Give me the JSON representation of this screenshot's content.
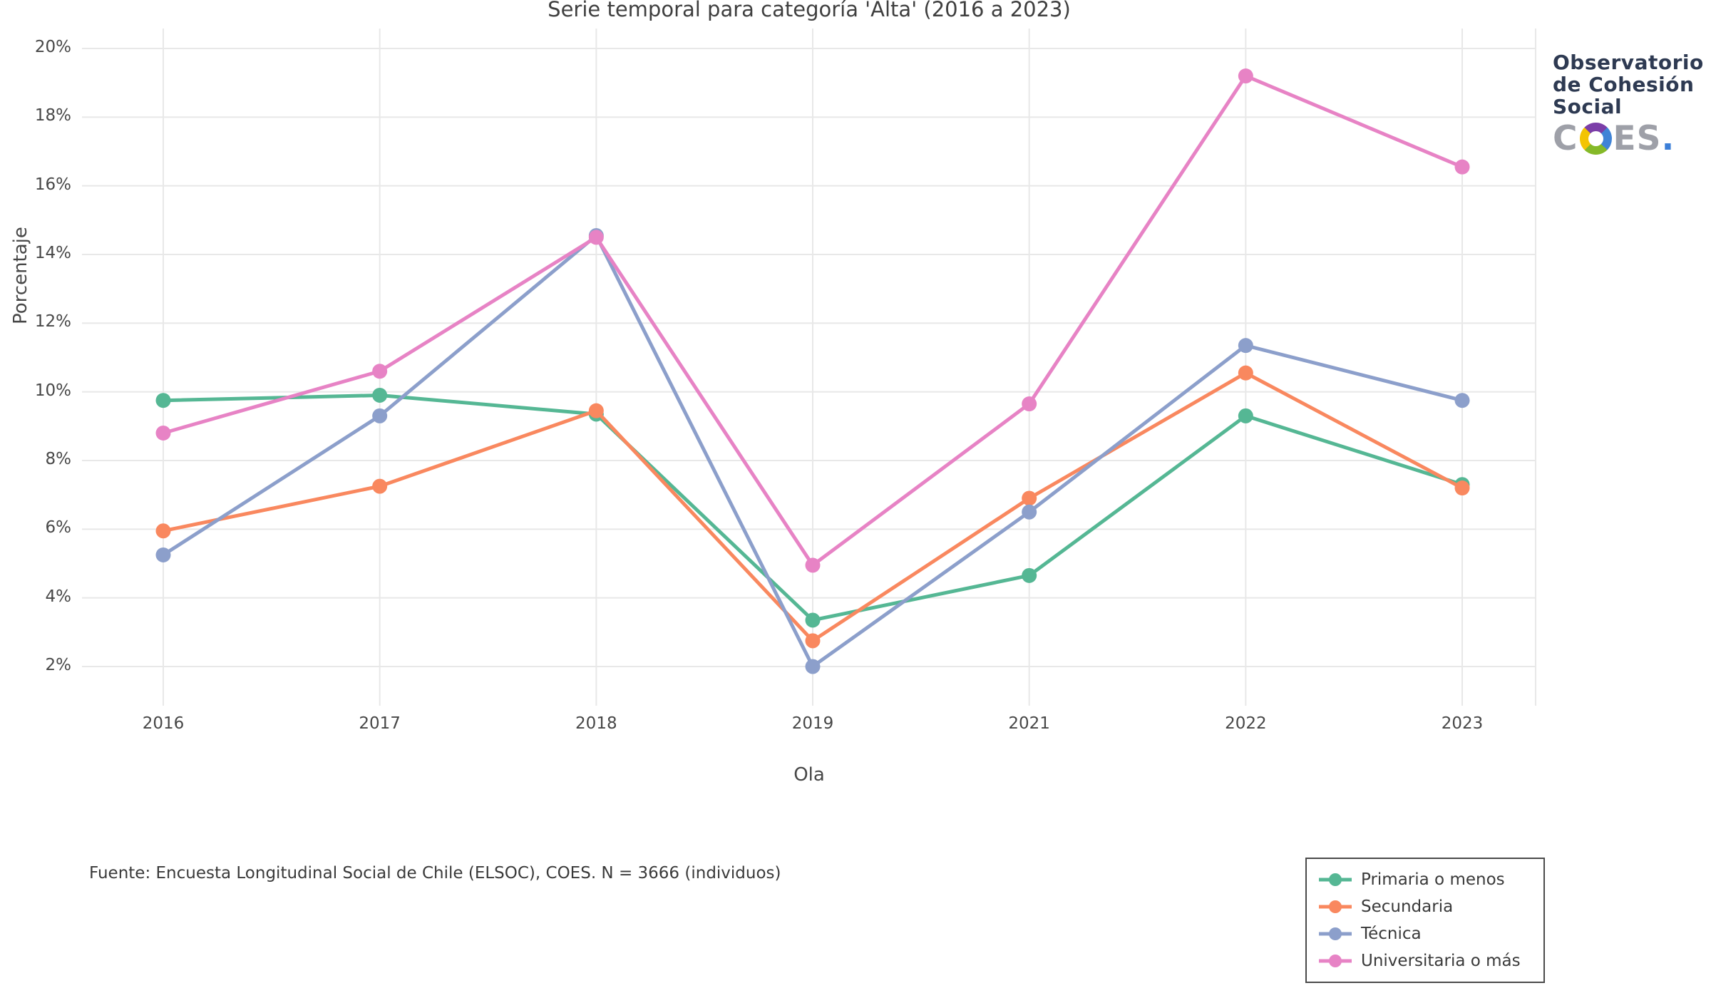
{
  "title": "Serie temporal para categoría 'Alta' (2016 a 2023)",
  "y_axis": {
    "label": "Porcentaje",
    "tick_labels": [
      "20%",
      "18%",
      "16%",
      "14%",
      "12%",
      "10%",
      "8%",
      "6%",
      "4%",
      "2%"
    ],
    "tick_values": [
      20,
      18,
      16,
      14,
      12,
      10,
      8,
      6,
      4,
      2
    ]
  },
  "x_axis": {
    "label": "Ola",
    "categories": [
      "2016",
      "2017",
      "2018",
      "2019",
      "2021",
      "2022",
      "2023"
    ]
  },
  "chart_data": {
    "type": "line",
    "title": "Serie temporal para categoría 'Alta' (2016 a 2023)",
    "xlabel": "Ola",
    "ylabel": "Porcentaje",
    "categories": [
      "2016",
      "2017",
      "2018",
      "2019",
      "2021",
      "2022",
      "2023"
    ],
    "series": [
      {
        "name": "Primaria o menos",
        "color": "#55b794",
        "values": [
          9.75,
          9.9,
          9.35,
          3.35,
          4.65,
          9.3,
          7.3
        ]
      },
      {
        "name": "Secundaria",
        "color": "#f9885f",
        "values": [
          5.95,
          7.25,
          9.45,
          2.75,
          6.9,
          10.55,
          7.2
        ]
      },
      {
        "name": "Técnica",
        "color": "#8c9fcb",
        "values": [
          5.25,
          9.3,
          14.55,
          2.0,
          6.5,
          11.35,
          9.75
        ]
      },
      {
        "name": "Universitaria o más",
        "color": "#e783c5",
        "values": [
          8.8,
          10.6,
          14.5,
          4.95,
          9.65,
          19.2,
          16.55
        ]
      }
    ],
    "ylim": [
      2,
      20
    ],
    "grid": true,
    "legend_position": "bottom-right",
    "grid_color": "#e8e8e8"
  },
  "footer": {
    "source": "Fuente: Encuesta Longitudinal Social de Chile (ELSOC), COES. N = 3666 (individuos)"
  },
  "logo": {
    "org_line1": "Observatorio",
    "org_line2": "de Cohesión",
    "org_line3": "Social",
    "brand_c": "C",
    "brand_es": "ES",
    "brand_dot": ".",
    "navy": "#2e3a52",
    "gray": "#9ea0a8",
    "blue": "#3c7fd8"
  }
}
